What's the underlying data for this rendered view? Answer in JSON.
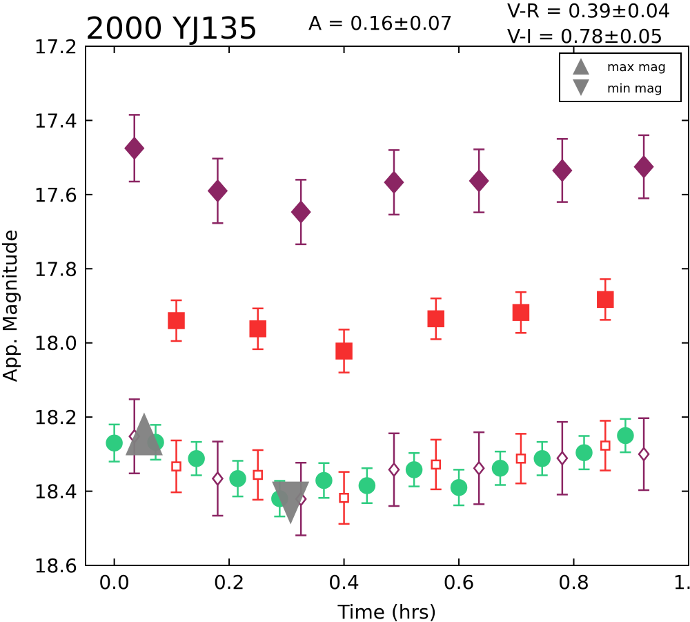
{
  "chart_data": {
    "type": "scatter",
    "title": "2000 YJ135",
    "annotations": {
      "amplitude": "A  = 0.16±0.07",
      "vr": "V-R = 0.39±0.04",
      "vi": "V-I  = 0.78±0.05"
    },
    "xlabel": "Time (hrs)",
    "ylabel": "App. Magnitude",
    "xlim": [
      -0.05,
      1.0
    ],
    "ylim": [
      18.6,
      17.2
    ],
    "y_inverted": true,
    "xticks": [
      0.0,
      0.2,
      0.4,
      0.6,
      0.8,
      1.0
    ],
    "xtick_labels": [
      "0.0",
      "0.2",
      "0.4",
      "0.6",
      "0.8",
      "1.0"
    ],
    "yticks": [
      17.2,
      17.4,
      17.6,
      17.8,
      18.0,
      18.2,
      18.4,
      18.6
    ],
    "ytick_labels": [
      "17.2",
      "17.4",
      "17.6",
      "17.8",
      "18.0",
      "18.2",
      "18.4",
      "18.6"
    ],
    "grid": false,
    "legend": {
      "placement": "top-right",
      "entries": [
        {
          "label": "max mag",
          "marker": "triangle-up",
          "color": "#808080"
        },
        {
          "label": "min mag",
          "marker": "triangle-down",
          "color": "#808080"
        }
      ]
    },
    "series": [
      {
        "marker": "diamond",
        "filled": true,
        "color": "#8b2563",
        "points": [
          {
            "x": 0.035,
            "y": 17.475,
            "err": 0.09
          },
          {
            "x": 0.18,
            "y": 17.59,
            "err": 0.087
          },
          {
            "x": 0.325,
            "y": 17.647,
            "err": 0.087
          },
          {
            "x": 0.487,
            "y": 17.567,
            "err": 0.087
          },
          {
            "x": 0.635,
            "y": 17.563,
            "err": 0.085
          },
          {
            "x": 0.78,
            "y": 17.535,
            "err": 0.085
          },
          {
            "x": 0.922,
            "y": 17.525,
            "err": 0.085
          }
        ]
      },
      {
        "marker": "square",
        "filled": true,
        "color": "#f62f2f",
        "points": [
          {
            "x": 0.108,
            "y": 17.94,
            "err": 0.055
          },
          {
            "x": 0.25,
            "y": 17.962,
            "err": 0.055
          },
          {
            "x": 0.4,
            "y": 18.022,
            "err": 0.058
          },
          {
            "x": 0.56,
            "y": 17.935,
            "err": 0.055
          },
          {
            "x": 0.708,
            "y": 17.918,
            "err": 0.055
          },
          {
            "x": 0.855,
            "y": 17.883,
            "err": 0.055
          }
        ]
      },
      {
        "marker": "circle",
        "filled": true,
        "color": "#2ecc80",
        "points": [
          {
            "x": 0.0,
            "y": 18.27,
            "err": 0.05
          },
          {
            "x": 0.072,
            "y": 18.268,
            "err": 0.047
          },
          {
            "x": 0.143,
            "y": 18.312,
            "err": 0.045
          },
          {
            "x": 0.215,
            "y": 18.366,
            "err": 0.048
          },
          {
            "x": 0.288,
            "y": 18.42,
            "err": 0.048
          },
          {
            "x": 0.365,
            "y": 18.371,
            "err": 0.047
          },
          {
            "x": 0.44,
            "y": 18.385,
            "err": 0.047
          },
          {
            "x": 0.522,
            "y": 18.342,
            "err": 0.045
          },
          {
            "x": 0.6,
            "y": 18.39,
            "err": 0.048
          },
          {
            "x": 0.672,
            "y": 18.338,
            "err": 0.045
          },
          {
            "x": 0.745,
            "y": 18.312,
            "err": 0.045
          },
          {
            "x": 0.818,
            "y": 18.296,
            "err": 0.045
          },
          {
            "x": 0.89,
            "y": 18.25,
            "err": 0.045
          }
        ]
      },
      {
        "marker": "square",
        "filled": false,
        "color": "#f62f2f",
        "points": [
          {
            "x": 0.108,
            "y": 18.333,
            "err": 0.07
          },
          {
            "x": 0.25,
            "y": 18.356,
            "err": 0.067
          },
          {
            "x": 0.4,
            "y": 18.418,
            "err": 0.07
          },
          {
            "x": 0.56,
            "y": 18.328,
            "err": 0.067
          },
          {
            "x": 0.708,
            "y": 18.312,
            "err": 0.067
          },
          {
            "x": 0.855,
            "y": 18.277,
            "err": 0.067
          }
        ]
      },
      {
        "marker": "diamond",
        "filled": false,
        "color": "#8b2563",
        "points": [
          {
            "x": 0.035,
            "y": 18.252,
            "err": 0.1
          },
          {
            "x": 0.18,
            "y": 18.366,
            "err": 0.1
          },
          {
            "x": 0.325,
            "y": 18.421,
            "err": 0.098
          },
          {
            "x": 0.487,
            "y": 18.342,
            "err": 0.098
          },
          {
            "x": 0.635,
            "y": 18.338,
            "err": 0.097
          },
          {
            "x": 0.78,
            "y": 18.311,
            "err": 0.098
          },
          {
            "x": 0.922,
            "y": 18.3,
            "err": 0.097
          }
        ]
      },
      {
        "marker": "triangle-up",
        "filled": true,
        "color": "#808080",
        "opacity": 0.95,
        "points": [
          {
            "x": 0.052,
            "y": 18.262
          }
        ]
      },
      {
        "marker": "triangle-down",
        "filled": true,
        "color": "#808080",
        "opacity": 0.95,
        "points": [
          {
            "x": 0.307,
            "y": 18.415
          }
        ]
      }
    ]
  }
}
